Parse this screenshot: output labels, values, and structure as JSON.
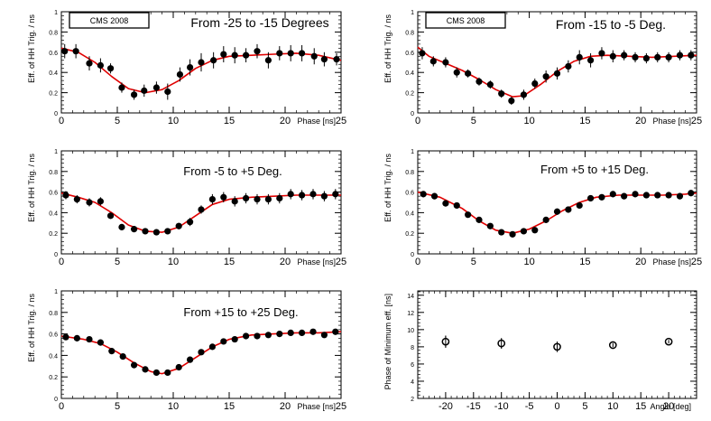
{
  "colors": {
    "fit": "#e00000",
    "point": "#000000",
    "axis": "#000000",
    "background": "#ffffff"
  },
  "chart_data": [
    {
      "type": "scatter",
      "title": "From -25 to -15 Degrees",
      "tag": "CMS 2008",
      "xlabel": "Phase [ns]",
      "ylabel": "Eff. of HH Trig. / ns",
      "xlim": [
        0,
        25
      ],
      "ylim": [
        0,
        1
      ],
      "xticks": [
        0,
        5,
        10,
        15,
        20,
        25
      ],
      "yticks": [
        0,
        0.2,
        0.4,
        0.6,
        0.8,
        1
      ],
      "ytick_labels": [
        "0",
        "0.2",
        "0.4",
        "0.6",
        "0.8",
        "1"
      ],
      "points": [
        [
          0.3,
          0.61
        ],
        [
          1.3,
          0.61
        ],
        [
          2.5,
          0.49
        ],
        [
          3.5,
          0.47
        ],
        [
          4.4,
          0.44
        ],
        [
          5.4,
          0.25
        ],
        [
          6.5,
          0.18
        ],
        [
          7.4,
          0.22
        ],
        [
          8.5,
          0.25
        ],
        [
          9.5,
          0.21
        ],
        [
          10.6,
          0.38
        ],
        [
          11.5,
          0.45
        ],
        [
          12.5,
          0.5
        ],
        [
          13.6,
          0.52
        ],
        [
          14.5,
          0.58
        ],
        [
          15.5,
          0.57
        ],
        [
          16.5,
          0.57
        ],
        [
          17.5,
          0.61
        ],
        [
          18.5,
          0.52
        ],
        [
          19.5,
          0.59
        ],
        [
          20.5,
          0.59
        ],
        [
          21.5,
          0.59
        ],
        [
          22.6,
          0.56
        ],
        [
          23.5,
          0.53
        ],
        [
          24.6,
          0.53
        ]
      ],
      "errors": [
        0.07,
        0.07,
        0.07,
        0.07,
        0.05,
        0.05,
        0.05,
        0.06,
        0.06,
        0.08,
        0.07,
        0.08,
        0.09,
        0.08,
        0.08,
        0.08,
        0.07,
        0.07,
        0.08,
        0.07,
        0.08,
        0.08,
        0.08,
        0.07,
        0.06
      ],
      "fit": [
        [
          0,
          0.64
        ],
        [
          1.5,
          0.6
        ],
        [
          3,
          0.5
        ],
        [
          4.5,
          0.36
        ],
        [
          6,
          0.24
        ],
        [
          7.5,
          0.2
        ],
        [
          9,
          0.23
        ],
        [
          10.5,
          0.32
        ],
        [
          12,
          0.44
        ],
        [
          13.5,
          0.52
        ],
        [
          15,
          0.56
        ],
        [
          17,
          0.57
        ],
        [
          19,
          0.58
        ],
        [
          21,
          0.59
        ],
        [
          23,
          0.57
        ],
        [
          25,
          0.52
        ]
      ]
    },
    {
      "type": "scatter",
      "title": "From -15 to -5 Deg.",
      "tag": "CMS 2008",
      "xlabel": "Phase [ns]",
      "ylabel": "Eff. of HH Trig. / ns",
      "xlim": [
        0,
        25
      ],
      "ylim": [
        0,
        1
      ],
      "xticks": [
        0,
        5,
        10,
        15,
        20,
        25
      ],
      "yticks": [
        0,
        0.2,
        0.4,
        0.6,
        0.8,
        1
      ],
      "ytick_labels": [
        "0",
        "0.2",
        "0.4",
        "0.6",
        "0.8",
        "1"
      ],
      "points": [
        [
          0.4,
          0.59
        ],
        [
          1.4,
          0.51
        ],
        [
          2.5,
          0.5
        ],
        [
          3.5,
          0.4
        ],
        [
          4.5,
          0.39
        ],
        [
          5.5,
          0.31
        ],
        [
          6.5,
          0.28
        ],
        [
          7.5,
          0.19
        ],
        [
          8.4,
          0.12
        ],
        [
          9.5,
          0.18
        ],
        [
          10.5,
          0.29
        ],
        [
          11.5,
          0.36
        ],
        [
          12.5,
          0.39
        ],
        [
          13.5,
          0.46
        ],
        [
          14.5,
          0.55
        ],
        [
          15.5,
          0.52
        ],
        [
          16.5,
          0.59
        ],
        [
          17.5,
          0.56
        ],
        [
          18.5,
          0.57
        ],
        [
          19.5,
          0.55
        ],
        [
          20.5,
          0.54
        ],
        [
          21.5,
          0.55
        ],
        [
          22.5,
          0.55
        ],
        [
          23.5,
          0.57
        ],
        [
          24.5,
          0.57
        ]
      ],
      "errors": [
        0.06,
        0.05,
        0.05,
        0.05,
        0.04,
        0.04,
        0.04,
        0.04,
        0.04,
        0.05,
        0.05,
        0.06,
        0.06,
        0.06,
        0.07,
        0.07,
        0.06,
        0.06,
        0.05,
        0.05,
        0.05,
        0.05,
        0.05,
        0.05,
        0.05
      ],
      "fit": [
        [
          0,
          0.65
        ],
        [
          1,
          0.56
        ],
        [
          2.5,
          0.49
        ],
        [
          4,
          0.42
        ],
        [
          5.5,
          0.33
        ],
        [
          7,
          0.23
        ],
        [
          8.5,
          0.16
        ],
        [
          9.5,
          0.17
        ],
        [
          11,
          0.28
        ],
        [
          12.5,
          0.41
        ],
        [
          14,
          0.51
        ],
        [
          15.5,
          0.56
        ],
        [
          17,
          0.57
        ],
        [
          19,
          0.56
        ],
        [
          21,
          0.55
        ],
        [
          23,
          0.56
        ],
        [
          25,
          0.57
        ]
      ]
    },
    {
      "type": "scatter",
      "title": "From -5 to +5 Deg.",
      "tag": "",
      "xlabel": "Phase [ns]",
      "ylabel": "Eff. of HH Trig. / ns",
      "xlim": [
        0,
        25
      ],
      "ylim": [
        0,
        1
      ],
      "xticks": [
        0,
        5,
        10,
        15,
        20,
        25
      ],
      "yticks": [
        0,
        0.2,
        0.4,
        0.6,
        0.8,
        1
      ],
      "ytick_labels": [
        "0",
        "0.2",
        "0.4",
        "0.6",
        "0.8",
        "1"
      ],
      "points": [
        [
          0.4,
          0.57
        ],
        [
          1.4,
          0.53
        ],
        [
          2.5,
          0.5
        ],
        [
          3.5,
          0.51
        ],
        [
          4.4,
          0.37
        ],
        [
          5.4,
          0.26
        ],
        [
          6.5,
          0.24
        ],
        [
          7.5,
          0.22
        ],
        [
          8.5,
          0.21
        ],
        [
          9.5,
          0.22
        ],
        [
          10.5,
          0.27
        ],
        [
          11.5,
          0.31
        ],
        [
          12.5,
          0.43
        ],
        [
          13.5,
          0.53
        ],
        [
          14.5,
          0.55
        ],
        [
          15.5,
          0.51
        ],
        [
          16.5,
          0.54
        ],
        [
          17.5,
          0.53
        ],
        [
          18.5,
          0.53
        ],
        [
          19.5,
          0.54
        ],
        [
          20.5,
          0.58
        ],
        [
          21.5,
          0.57
        ],
        [
          22.5,
          0.58
        ],
        [
          23.5,
          0.56
        ],
        [
          24.5,
          0.58
        ]
      ],
      "errors": [
        0.04,
        0.04,
        0.04,
        0.04,
        0.03,
        0.03,
        0.03,
        0.03,
        0.03,
        0.03,
        0.03,
        0.04,
        0.04,
        0.05,
        0.05,
        0.05,
        0.05,
        0.05,
        0.05,
        0.05,
        0.05,
        0.05,
        0.05,
        0.05,
        0.05
      ],
      "fit": [
        [
          0,
          0.59
        ],
        [
          1.5,
          0.55
        ],
        [
          3,
          0.5
        ],
        [
          4.5,
          0.4
        ],
        [
          6,
          0.28
        ],
        [
          7.5,
          0.22
        ],
        [
          9,
          0.21
        ],
        [
          10.5,
          0.26
        ],
        [
          12,
          0.37
        ],
        [
          13.5,
          0.48
        ],
        [
          15,
          0.53
        ],
        [
          17,
          0.55
        ],
        [
          19,
          0.56
        ],
        [
          21,
          0.57
        ],
        [
          23,
          0.57
        ],
        [
          25,
          0.57
        ]
      ]
    },
    {
      "type": "scatter",
      "title": "From +5 to +15 Deg.",
      "tag": "",
      "xlabel": "Phase [ns]",
      "ylabel": "Eff. of HH Trig. / ns",
      "xlim": [
        0,
        25
      ],
      "ylim": [
        0,
        1
      ],
      "xticks": [
        0,
        5,
        10,
        15,
        20,
        25
      ],
      "yticks": [
        0,
        0.2,
        0.4,
        0.6,
        0.8,
        1
      ],
      "ytick_labels": [
        "0",
        "0.2",
        "0.4",
        "0.6",
        "0.8",
        "1"
      ],
      "points": [
        [
          0.5,
          0.58
        ],
        [
          1.5,
          0.56
        ],
        [
          2.5,
          0.49
        ],
        [
          3.5,
          0.47
        ],
        [
          4.5,
          0.38
        ],
        [
          5.5,
          0.33
        ],
        [
          6.5,
          0.27
        ],
        [
          7.5,
          0.21
        ],
        [
          8.5,
          0.19
        ],
        [
          9.5,
          0.22
        ],
        [
          10.5,
          0.23
        ],
        [
          11.5,
          0.33
        ],
        [
          12.5,
          0.41
        ],
        [
          13.5,
          0.43
        ],
        [
          14.5,
          0.47
        ],
        [
          15.5,
          0.54
        ],
        [
          16.5,
          0.55
        ],
        [
          17.5,
          0.58
        ],
        [
          18.5,
          0.56
        ],
        [
          19.5,
          0.58
        ],
        [
          20.5,
          0.57
        ],
        [
          21.5,
          0.57
        ],
        [
          22.5,
          0.57
        ],
        [
          23.5,
          0.56
        ],
        [
          24.5,
          0.59
        ]
      ],
      "errors": [
        0.03,
        0.03,
        0.03,
        0.03,
        0.03,
        0.02,
        0.02,
        0.02,
        0.02,
        0.02,
        0.02,
        0.03,
        0.03,
        0.03,
        0.03,
        0.03,
        0.03,
        0.03,
        0.03,
        0.03,
        0.03,
        0.03,
        0.03,
        0.03,
        0.03
      ],
      "fit": [
        [
          0,
          0.6
        ],
        [
          2,
          0.55
        ],
        [
          4,
          0.44
        ],
        [
          5.5,
          0.32
        ],
        [
          7,
          0.23
        ],
        [
          8.5,
          0.2
        ],
        [
          10,
          0.24
        ],
        [
          11.5,
          0.32
        ],
        [
          13,
          0.42
        ],
        [
          14.5,
          0.5
        ],
        [
          16,
          0.55
        ],
        [
          18,
          0.57
        ],
        [
          20,
          0.57
        ],
        [
          22,
          0.57
        ],
        [
          24,
          0.58
        ],
        [
          25,
          0.59
        ]
      ]
    },
    {
      "type": "scatter",
      "title": "From +15 to +25 Deg.",
      "tag": "",
      "xlabel": "Phase [ns]",
      "ylabel": "Eff. of HH Trig. / ns",
      "xlim": [
        0,
        25
      ],
      "ylim": [
        0,
        1
      ],
      "xticks": [
        0,
        5,
        10,
        15,
        20,
        25
      ],
      "yticks": [
        0,
        0.2,
        0.4,
        0.6,
        0.8,
        1
      ],
      "ytick_labels": [
        "0",
        "0.2",
        "0.4",
        "0.6",
        "0.8",
        "1"
      ],
      "points": [
        [
          0.4,
          0.57
        ],
        [
          1.4,
          0.56
        ],
        [
          2.5,
          0.55
        ],
        [
          3.5,
          0.52
        ],
        [
          4.5,
          0.44
        ],
        [
          5.5,
          0.39
        ],
        [
          6.5,
          0.31
        ],
        [
          7.5,
          0.27
        ],
        [
          8.5,
          0.24
        ],
        [
          9.5,
          0.24
        ],
        [
          10.5,
          0.29
        ],
        [
          11.5,
          0.36
        ],
        [
          12.5,
          0.43
        ],
        [
          13.5,
          0.48
        ],
        [
          14.5,
          0.53
        ],
        [
          15.5,
          0.55
        ],
        [
          16.5,
          0.58
        ],
        [
          17.5,
          0.58
        ],
        [
          18.5,
          0.59
        ],
        [
          19.5,
          0.6
        ],
        [
          20.5,
          0.61
        ],
        [
          21.5,
          0.61
        ],
        [
          22.5,
          0.62
        ],
        [
          23.5,
          0.59
        ],
        [
          24.5,
          0.62
        ]
      ],
      "errors": [
        0.02,
        0.02,
        0.02,
        0.02,
        0.02,
        0.02,
        0.02,
        0.02,
        0.02,
        0.02,
        0.02,
        0.02,
        0.02,
        0.02,
        0.02,
        0.02,
        0.02,
        0.02,
        0.02,
        0.02,
        0.02,
        0.02,
        0.02,
        0.02,
        0.02
      ],
      "fit": [
        [
          0,
          0.58
        ],
        [
          2,
          0.55
        ],
        [
          3.5,
          0.51
        ],
        [
          5,
          0.43
        ],
        [
          6.5,
          0.33
        ],
        [
          8,
          0.25
        ],
        [
          9,
          0.23
        ],
        [
          10.5,
          0.28
        ],
        [
          12,
          0.38
        ],
        [
          13.5,
          0.48
        ],
        [
          15,
          0.55
        ],
        [
          17,
          0.59
        ],
        [
          19,
          0.6
        ],
        [
          21,
          0.61
        ],
        [
          23,
          0.61
        ],
        [
          25,
          0.62
        ]
      ]
    },
    {
      "type": "scatter",
      "title": "",
      "tag": "",
      "xlabel": "Angle [deg]",
      "ylabel": "Phase of Minimum eff. [ns]",
      "xlim": [
        -25,
        25
      ],
      "ylim": [
        2,
        14.5
      ],
      "xticks": [
        -20,
        -15,
        -10,
        -5,
        0,
        5,
        10,
        15,
        20
      ],
      "yticks": [
        2,
        4,
        6,
        8,
        10,
        12,
        14
      ],
      "ytick_labels": [
        "2",
        "4",
        "6",
        "8",
        "10",
        "12",
        "14"
      ],
      "marker": "open",
      "points": [
        [
          -20,
          8.6
        ],
        [
          -10,
          8.4
        ],
        [
          0,
          8.0
        ],
        [
          10,
          8.2
        ],
        [
          20,
          8.6
        ]
      ],
      "errors": [
        0.7,
        0.6,
        0.6,
        0.25,
        0.2
      ],
      "fit": []
    }
  ]
}
